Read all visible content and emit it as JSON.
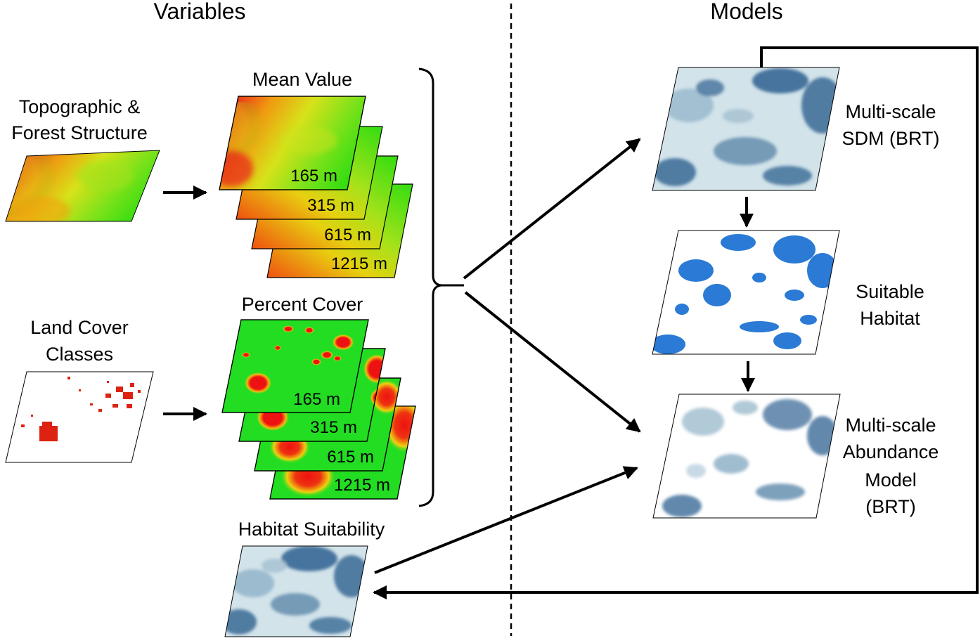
{
  "headers": {
    "variables": "Variables",
    "models": "Models"
  },
  "inputs": {
    "topo": [
      "Topographic &",
      "Forest Structure"
    ],
    "landcover": [
      "Land Cover",
      "Classes"
    ]
  },
  "stacks": {
    "mean": {
      "title": "Mean Value",
      "scales": [
        "165 m",
        "315 m",
        "615 m",
        "1215 m"
      ]
    },
    "percent": {
      "title": "Percent Cover",
      "scales": [
        "165 m",
        "315 m",
        "615 m",
        "1215 m"
      ]
    }
  },
  "habitat_suitability": "Habitat Suitability",
  "models": {
    "sdm": [
      "Multi-scale",
      "SDM (BRT)"
    ],
    "suitable": [
      "Suitable",
      "Habitat"
    ],
    "abundance": [
      "Multi-scale",
      "Abundance",
      "Model",
      "(BRT)"
    ]
  },
  "colors": {
    "topo_high": "#e8241a",
    "topo_mid": "#f0d800",
    "topo_low": "#33dd11",
    "cover_green": "#22dd22",
    "cover_red": "#ee1111",
    "sdm_light": "#d2e3ea",
    "sdm_dark": "#2f6190",
    "suitable_blue": "#2a7ad6",
    "landcover_red": "#dd2211"
  }
}
